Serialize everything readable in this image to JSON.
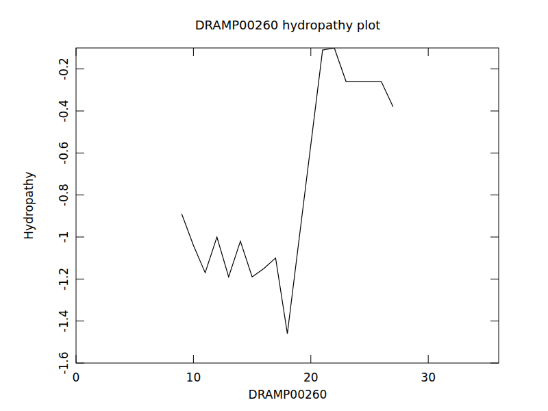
{
  "chart_data": {
    "type": "line",
    "title": "DRAMP00260 hydropathy plot",
    "x_label": "DRAMP00260",
    "y_label": "Hydropathy",
    "x": [
      9,
      10,
      11,
      12,
      13,
      14,
      15,
      16,
      17,
      18,
      19,
      20,
      21,
      22,
      23,
      24,
      25,
      26,
      27
    ],
    "values": [
      -0.89,
      -1.04,
      -1.17,
      -1.0,
      -1.19,
      -1.02,
      -1.19,
      -1.15,
      -1.1,
      -1.46,
      -1.01,
      -0.56,
      -0.11,
      -0.1,
      -0.26,
      -0.26,
      -0.26,
      -0.26,
      -0.38
    ],
    "color": "#000000",
    "xlim": [
      0,
      36
    ],
    "xticks": [
      0,
      10,
      20,
      30
    ],
    "ylim": [
      -1.6,
      -0.1
    ],
    "yticks": [
      -1.6,
      -1.4,
      -1.2,
      -1.0,
      -0.8,
      -0.6,
      -0.4,
      -0.2
    ],
    "grid": false
  }
}
